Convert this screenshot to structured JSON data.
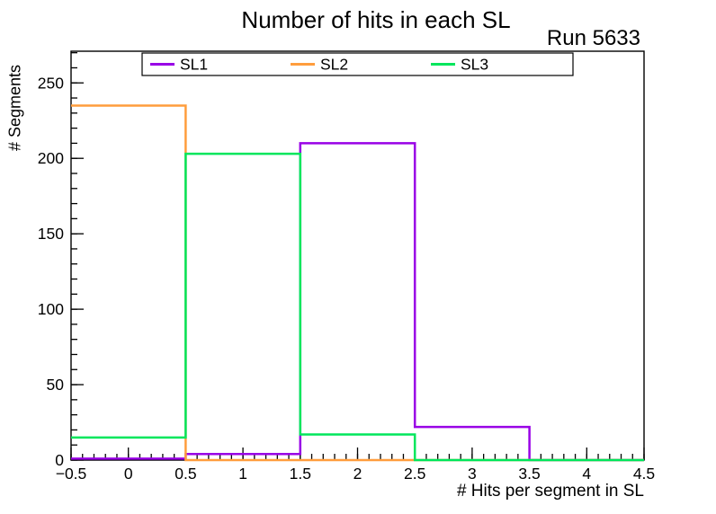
{
  "header": {
    "title": "Number of hits in each SL",
    "run_label": "Run 5633"
  },
  "chart_data": {
    "type": "step-histogram",
    "title": "Number of hits in each SL",
    "annotation": "Run 5633",
    "xlabel": "# Hits per segment in SL",
    "ylabel": "# Segments",
    "xlim": [
      -0.5,
      4.5
    ],
    "ylim": [
      0,
      271
    ],
    "grid": false,
    "legend_position": "top-center",
    "bin_edges": [
      -0.5,
      0.5,
      1.5,
      2.5,
      3.5,
      4.5
    ],
    "x_major_ticks": [
      -0.5,
      0,
      0.5,
      1,
      1.5,
      2,
      2.5,
      3,
      3.5,
      4,
      4.5
    ],
    "x_tick_labels": [
      "−0.5",
      "0",
      "0.5",
      "1",
      "1.5",
      "2",
      "2.5",
      "3",
      "3.5",
      "4",
      "4.5"
    ],
    "x_minor_step": 0.1,
    "y_major_ticks": [
      0,
      50,
      100,
      150,
      200,
      250
    ],
    "y_tick_labels": [
      "0",
      "50",
      "100",
      "150",
      "200",
      "250"
    ],
    "y_minor_step": 10,
    "series": [
      {
        "name": "SL1",
        "color": "#9900e6",
        "values": [
          1,
          4,
          210,
          22,
          0
        ]
      },
      {
        "name": "SL2",
        "color": "#ff9d3d",
        "values": [
          235,
          0,
          0,
          0,
          0
        ]
      },
      {
        "name": "SL3",
        "color": "#00e65c",
        "values": [
          15,
          203,
          17,
          0,
          0
        ]
      }
    ],
    "colors": {
      "frame": "#000000",
      "background": "#ffffff",
      "sl1": "#9900e6",
      "sl2": "#ff9d3d",
      "sl3": "#00e65c"
    }
  }
}
